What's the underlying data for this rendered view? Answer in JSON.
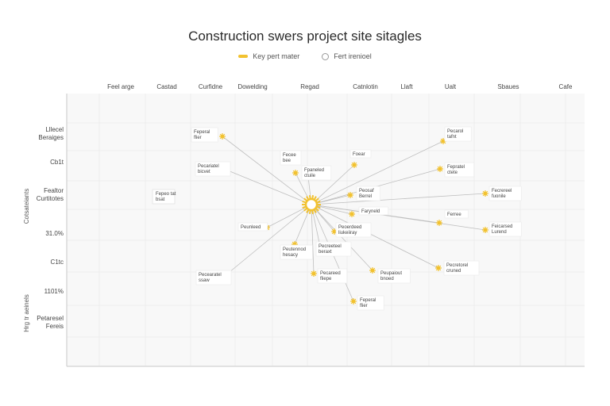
{
  "title": "Construction swers project site sitagles",
  "legend": [
    {
      "label": "Key pert mater",
      "swatch": "line",
      "color": "#f2c230"
    },
    {
      "label": "Fert irenioel",
      "swatch": "circle",
      "color": "#999999"
    }
  ],
  "colors": {
    "node": "#f2c230",
    "edge": "#bfbfbf",
    "grid": "#eeeeee",
    "grid_bg": "#f8f8f8"
  },
  "columns": [
    "Feel arge",
    "Castad",
    "Curfidne",
    "Dowelding",
    "Regad",
    "Catnlotin",
    "Llaft",
    "Ualt",
    "Sbaues",
    "Cafe"
  ],
  "rows": [
    "Lllecel Beraiges",
    "Cb1t",
    "Fealtor Curtitotes",
    "31.0%",
    "C1tc",
    "1101%",
    "Petaresel Fereis"
  ],
  "y_axis_labels": [
    "Cotsateiants",
    "Hrg tr aeinels"
  ],
  "hub": {
    "label": ""
  },
  "nodes": [
    {
      "label": "Feperal flier"
    },
    {
      "label": "Pecariatel bicvet"
    },
    {
      "label": "Fecee bee"
    },
    {
      "label": "Fpaneled ctuile"
    },
    {
      "label": "Foear"
    },
    {
      "label": "Pecarol tafnt"
    },
    {
      "label": "Fepratel ctete"
    },
    {
      "label": "Fecrereel fuonile"
    },
    {
      "label": "Peosaf Berrel"
    },
    {
      "label": "Faryneld"
    },
    {
      "label": "Ferree"
    },
    {
      "label": "Feicarsed Lurend"
    },
    {
      "label": "Peunleed"
    },
    {
      "label": "Peoerdeed liukeiiray"
    },
    {
      "label": "Peutennod hesacy"
    },
    {
      "label": "Pecreeteel beraxt"
    },
    {
      "label": "Peupaiout bnoed"
    },
    {
      "label": "Pecretorel cruned"
    },
    {
      "label": "Pecearatel ssaw"
    },
    {
      "label": "Pecareed fliepe"
    }
  ],
  "side_note": {
    "label": "Fepeo tat bsat"
  }
}
